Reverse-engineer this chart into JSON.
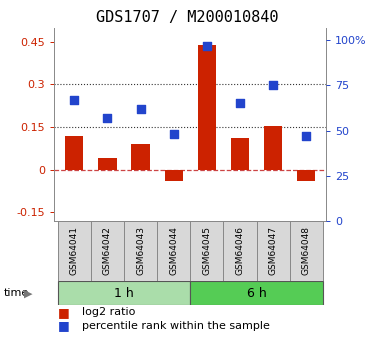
{
  "title": "GDS1707 / M200010840",
  "samples": [
    "GSM64041",
    "GSM64042",
    "GSM64043",
    "GSM64044",
    "GSM64045",
    "GSM64046",
    "GSM64047",
    "GSM64048"
  ],
  "log2_ratio": [
    0.12,
    0.04,
    0.09,
    -0.04,
    0.44,
    0.11,
    0.155,
    -0.04
  ],
  "percentile_rank": [
    67,
    57,
    62,
    48,
    97,
    65,
    75,
    47
  ],
  "groups": [
    {
      "label": "1 h",
      "indices": [
        0,
        1,
        2,
        3
      ],
      "color": "#aaddaa"
    },
    {
      "label": "6 h",
      "indices": [
        4,
        5,
        6,
        7
      ],
      "color": "#55cc55"
    }
  ],
  "bar_color": "#cc2200",
  "dot_color": "#2244cc",
  "ylim_left": [
    -0.18,
    0.5
  ],
  "ylim_right": [
    0,
    107
  ],
  "yticks_left": [
    -0.15,
    0.0,
    0.15,
    0.3,
    0.45
  ],
  "yticks_right": [
    0,
    25,
    50,
    75,
    100
  ],
  "ytick_labels_left": [
    "-0.15",
    "0",
    "0.15",
    "0.3",
    "0.45"
  ],
  "ytick_labels_right": [
    "0",
    "25",
    "50",
    "75",
    "100%"
  ],
  "zero_line_color": "#cc4444",
  "dotted_line_color": "#333333",
  "background_color": "#ffffff",
  "title_fontsize": 11,
  "tick_fontsize": 8,
  "sample_fontsize": 6.5,
  "group_fontsize": 9,
  "legend_fontsize": 8
}
